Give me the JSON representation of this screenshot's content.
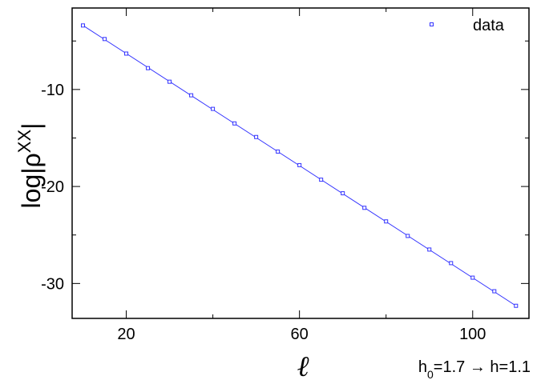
{
  "chart_data": {
    "type": "line",
    "title": "",
    "ylabel_main": "log|ρ",
    "ylabel_sup": "XX",
    "ylabel_end": "|",
    "xlabel": "ℓ",
    "annotation": {
      "h0_prefix": "h",
      "h0_sub": "0",
      "rest": "=1.7 → h=1.1"
    },
    "xlim": [
      7.5,
      113
    ],
    "ylim": [
      -33.6,
      -1.6
    ],
    "xticks_major": [
      20,
      60,
      100
    ],
    "xticks_minor": [
      40,
      80
    ],
    "xtick_labels": [
      "20",
      "60",
      "100"
    ],
    "yticks_major": [
      -10,
      -20,
      -30
    ],
    "yticks_minor": [
      -5,
      -15,
      -25
    ],
    "ytick_labels": [
      "-10",
      "-20",
      "-30"
    ],
    "legend": {
      "position": "top-right",
      "label": "data"
    },
    "colors": {
      "series": "#3333ff",
      "axes": "#000000"
    },
    "series": [
      {
        "name": "data",
        "marker": "square",
        "x": [
          10,
          15,
          20,
          25,
          30,
          35,
          40,
          45,
          50,
          55,
          60,
          65,
          70,
          75,
          80,
          85,
          90,
          95,
          100,
          105,
          110
        ],
        "y": [
          -3.4,
          -4.8,
          -6.3,
          -7.8,
          -9.2,
          -10.6,
          -12.0,
          -13.5,
          -14.9,
          -16.4,
          -17.8,
          -19.3,
          -20.7,
          -22.2,
          -23.6,
          -25.1,
          -26.5,
          -27.9,
          -29.4,
          -30.8,
          -32.3
        ]
      }
    ],
    "fit_line": {
      "x": [
        10,
        110
      ],
      "y": [
        -3.4,
        -32.3
      ]
    }
  }
}
